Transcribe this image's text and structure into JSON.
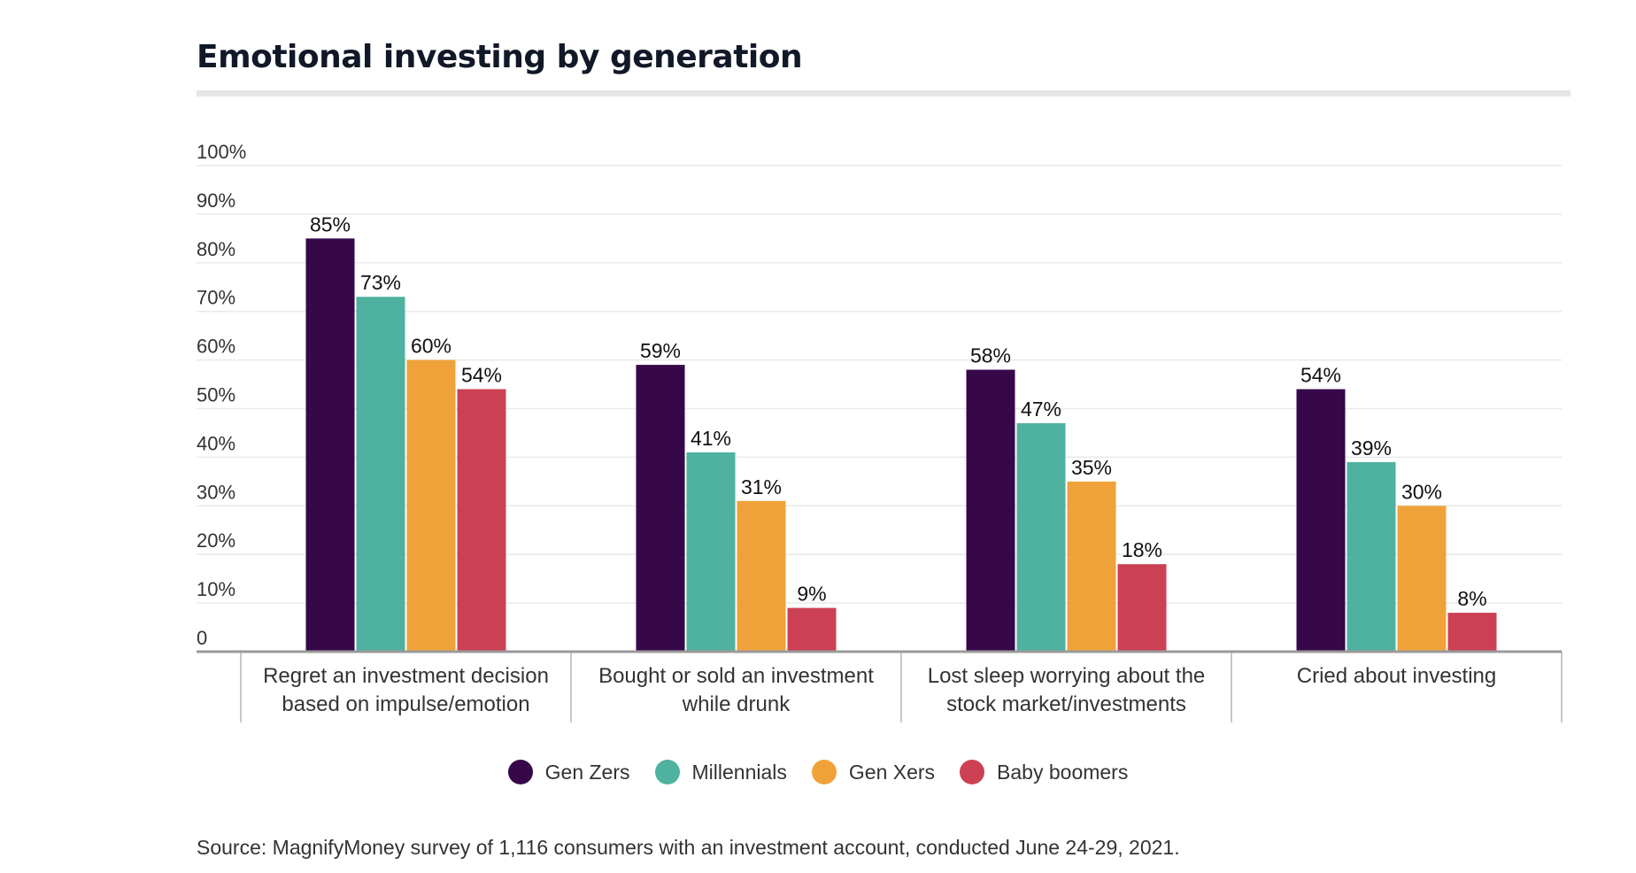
{
  "title": "Emotional investing by generation",
  "source": "Source: MagnifyMoney survey of 1,116 consumers with an investment account, conducted June 24-29, 2021.",
  "chart_data": {
    "type": "bar",
    "title": "Emotional investing by generation",
    "xlabel": "",
    "ylabel": "",
    "ylim": [
      0,
      100
    ],
    "y_ticks": [
      "0",
      "10%",
      "20%",
      "30%",
      "40%",
      "50%",
      "60%",
      "70%",
      "80%",
      "90%",
      "100%"
    ],
    "grid": true,
    "legend_position": "bottom",
    "categories": [
      [
        "Regret an investment decision",
        "based on impulse/emotion"
      ],
      [
        "Bought or sold an investment",
        "while drunk"
      ],
      [
        "Lost sleep worrying about the",
        "stock market/investments"
      ],
      [
        "Cried about investing"
      ]
    ],
    "series": [
      {
        "name": "Gen Zers",
        "color": "#360749",
        "values": [
          85,
          59,
          58,
          54
        ],
        "labels": [
          "85%",
          "59%",
          "58%",
          "54%"
        ]
      },
      {
        "name": "Millennials",
        "color": "#4fb1a0",
        "values": [
          73,
          41,
          47,
          39
        ],
        "labels": [
          "73%",
          "41%",
          "47%",
          "39%"
        ]
      },
      {
        "name": "Gen Xers",
        "color": "#f0a23a",
        "values": [
          60,
          31,
          35,
          30
        ],
        "labels": [
          "60%",
          "31%",
          "35%",
          "30%"
        ]
      },
      {
        "name": "Baby boomers",
        "color": "#cb4153",
        "values": [
          54,
          9,
          18,
          8
        ],
        "labels": [
          "54%",
          "9%",
          "18%",
          "8%"
        ]
      }
    ]
  }
}
